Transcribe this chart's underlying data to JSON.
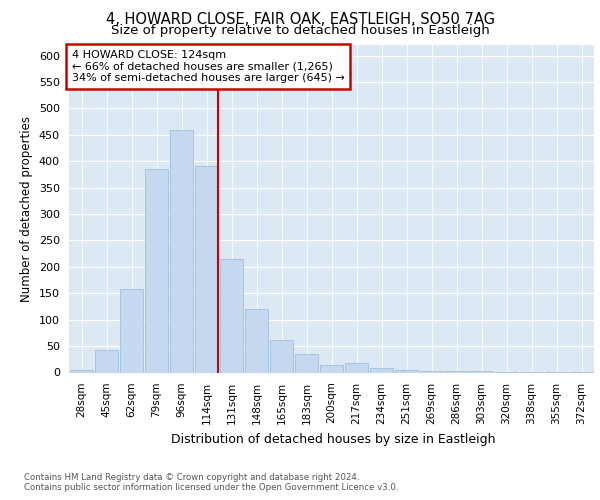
{
  "title_line1": "4, HOWARD CLOSE, FAIR OAK, EASTLEIGH, SO50 7AG",
  "title_line2": "Size of property relative to detached houses in Eastleigh",
  "xlabel": "Distribution of detached houses by size in Eastleigh",
  "ylabel": "Number of detached properties",
  "categories": [
    "28sqm",
    "45sqm",
    "62sqm",
    "79sqm",
    "96sqm",
    "114sqm",
    "131sqm",
    "148sqm",
    "165sqm",
    "183sqm",
    "200sqm",
    "217sqm",
    "234sqm",
    "251sqm",
    "269sqm",
    "286sqm",
    "303sqm",
    "320sqm",
    "338sqm",
    "355sqm",
    "372sqm"
  ],
  "values": [
    5,
    42,
    158,
    385,
    460,
    390,
    215,
    120,
    62,
    35,
    15,
    18,
    8,
    5,
    3,
    2,
    2,
    1,
    1,
    1,
    1
  ],
  "bar_color": "#c5d8f0",
  "bar_edge_color": "#a0c0e0",
  "vline_x_index": 5.45,
  "vline_color": "#cc0000",
  "annotation_marker_label": "4 HOWARD CLOSE: 124sqm",
  "annotation_line1": "← 66% of detached houses are smaller (1,265)",
  "annotation_line2": "34% of semi-detached houses are larger (645) →",
  "annotation_box_edge_color": "#cc0000",
  "ylim": [
    0,
    620
  ],
  "yticks": [
    0,
    50,
    100,
    150,
    200,
    250,
    300,
    350,
    400,
    450,
    500,
    550,
    600
  ],
  "fig_bg_color": "#ffffff",
  "plot_bg_color": "#dde8f5",
  "grid_color": "#ffffff",
  "footer_line1": "Contains HM Land Registry data © Crown copyright and database right 2024.",
  "footer_line2": "Contains public sector information licensed under the Open Government Licence v3.0."
}
